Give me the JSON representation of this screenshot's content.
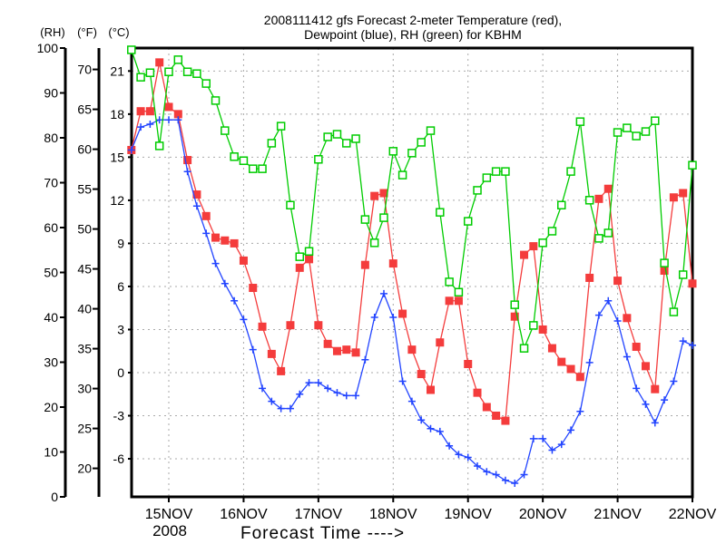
{
  "chart_data": {
    "type": "line",
    "title": [
      "2008111412 gfs Forecast 2-meter Temperature (red),",
      "Dewpoint (blue), RH (green) for KBHM"
    ],
    "xlabel": "Forecast Time ---->",
    "axis_headers": {
      "rh": "(RH)",
      "f": "(°F)",
      "c": "(°C)"
    },
    "x_start_day_offset": -0.5,
    "x_step_days": 0.125,
    "x_ticks": [
      "15NOV",
      "16NOV",
      "17NOV",
      "18NOV",
      "19NOV",
      "20NOV",
      "21NOV",
      "22NOV"
    ],
    "x_year_label": "2008",
    "c_range": [
      -8.65,
      22.6
    ],
    "c_ticks": [
      -6,
      -3,
      0,
      3,
      6,
      9,
      12,
      15,
      18,
      21
    ],
    "f_ticks": [
      20,
      25,
      30,
      35,
      40,
      45,
      50,
      55,
      60,
      65,
      70
    ],
    "rh_range": [
      0,
      100
    ],
    "rh_ticks": [
      0,
      10,
      20,
      30,
      40,
      50,
      60,
      70,
      80,
      90,
      100
    ],
    "grid": true,
    "series": [
      {
        "name": "Temperature",
        "unit": "C",
        "color": "#f43c3c",
        "marker": "filled-square",
        "values": [
          15.5,
          18.2,
          18.2,
          21.6,
          18.5,
          18.0,
          14.8,
          12.4,
          10.9,
          9.4,
          9.2,
          9.0,
          7.8,
          5.9,
          3.2,
          1.3,
          0.1,
          3.3,
          7.3,
          7.9,
          3.3,
          2.0,
          1.5,
          1.6,
          1.4,
          7.5,
          12.3,
          12.5,
          7.6,
          4.1,
          1.6,
          -0.1,
          -1.2,
          2.1,
          5.0,
          5.0,
          0.6,
          -1.4,
          -2.4,
          -3.0,
          -3.35,
          3.9,
          8.2,
          8.8,
          3.0,
          1.7,
          0.75,
          0.25,
          -0.3,
          6.6,
          12.1,
          12.8,
          6.4,
          3.8,
          1.8,
          0.45,
          -1.15,
          7.1,
          12.2,
          12.5,
          6.2
        ]
      },
      {
        "name": "Dewpoint",
        "unit": "C",
        "color": "#2244ff",
        "marker": "plus",
        "values": [
          15.5,
          17.1,
          17.3,
          17.6,
          17.6,
          17.6,
          14.0,
          11.6,
          9.7,
          7.6,
          6.2,
          5.0,
          3.7,
          1.6,
          -1.1,
          -2.0,
          -2.5,
          -2.5,
          -1.5,
          -0.7,
          -0.7,
          -1.1,
          -1.4,
          -1.6,
          -1.6,
          0.9,
          3.85,
          5.5,
          3.85,
          -0.6,
          -2.0,
          -3.3,
          -3.9,
          -4.1,
          -5.1,
          -5.7,
          -5.9,
          -6.5,
          -6.9,
          -7.1,
          -7.5,
          -7.7,
          -7.1,
          -4.6,
          -4.6,
          -5.4,
          -5.0,
          -4.0,
          -2.7,
          0.7,
          4.0,
          5.0,
          3.6,
          1.1,
          -1.1,
          -2.2,
          -3.5,
          -1.9,
          -0.6,
          2.2,
          1.9
        ]
      },
      {
        "name": "RH",
        "unit": "%",
        "color": "#00cc00",
        "marker": "open-square",
        "values": [
          99.6,
          93.5,
          94.5,
          78.2,
          94.7,
          97.4,
          94.7,
          94.3,
          92.1,
          88.3,
          81.6,
          75.8,
          74.9,
          73.1,
          73.1,
          78.8,
          82.6,
          65.0,
          53.5,
          54.7,
          75.2,
          80.2,
          80.8,
          78.8,
          79.8,
          61.8,
          56.6,
          62.2,
          77.0,
          71.7,
          76.6,
          79.0,
          81.6,
          63.4,
          47.9,
          45.6,
          61.4,
          68.3,
          71.1,
          72.5,
          72.5,
          42.8,
          33.1,
          38.2,
          56.6,
          59.2,
          65.0,
          72.5,
          83.6,
          66.1,
          57.6,
          58.8,
          81.2,
          82.2,
          80.4,
          81.4,
          83.8,
          52.1,
          41.2,
          49.5,
          73.9
        ]
      }
    ]
  }
}
